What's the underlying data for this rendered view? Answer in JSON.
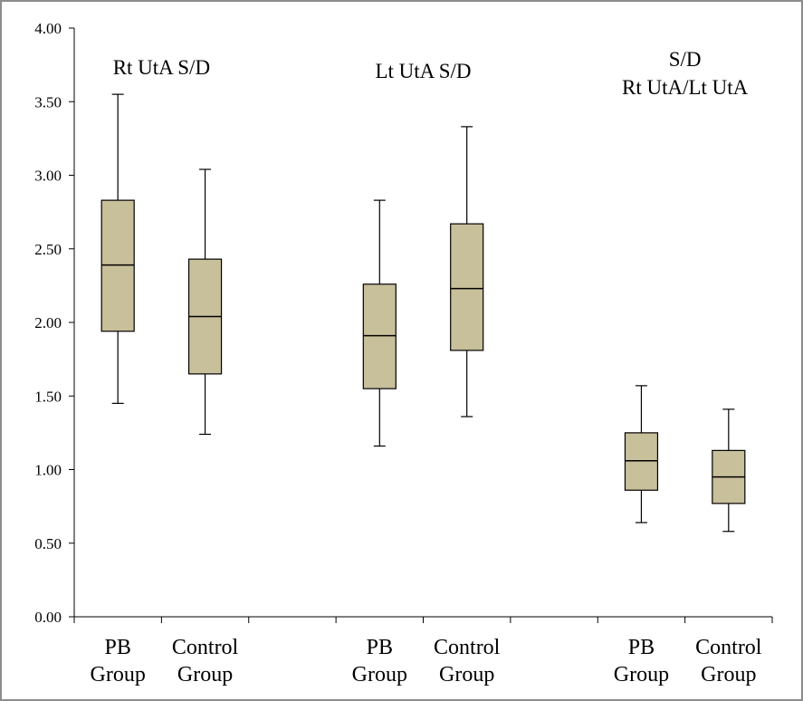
{
  "chart_data": {
    "type": "box",
    "ylim": [
      0,
      4
    ],
    "yticks": [
      "0.00",
      "0.50",
      "1.00",
      "1.50",
      "2.00",
      "2.50",
      "3.00",
      "3.50",
      "4.00"
    ],
    "box_color": "#c8bf9b",
    "groups": [
      {
        "label_lines": [
          "Rt UtA S/D"
        ],
        "boxes": [
          {
            "category": [
              "PB",
              "Group"
            ],
            "min": 1.45,
            "q1": 1.94,
            "median": 2.39,
            "q3": 2.83,
            "max": 3.55
          },
          {
            "category": [
              "Control",
              "Group"
            ],
            "min": 1.24,
            "q1": 1.65,
            "median": 2.04,
            "q3": 2.43,
            "max": 3.04
          }
        ]
      },
      {
        "label_lines": [
          "Lt UtA S/D"
        ],
        "boxes": [
          {
            "category": [
              "PB",
              "Group"
            ],
            "min": 1.16,
            "q1": 1.55,
            "median": 1.91,
            "q3": 2.26,
            "max": 2.83
          },
          {
            "category": [
              "Control",
              "Group"
            ],
            "min": 1.36,
            "q1": 1.81,
            "median": 2.23,
            "q3": 2.67,
            "max": 3.33
          }
        ]
      },
      {
        "label_lines": [
          "S/D",
          "Rt UtA/Lt UtA"
        ],
        "boxes": [
          {
            "category": [
              "PB",
              "Group"
            ],
            "min": 0.64,
            "q1": 0.86,
            "median": 1.06,
            "q3": 1.25,
            "max": 1.57
          },
          {
            "category": [
              "Control",
              "Group"
            ],
            "min": 0.58,
            "q1": 0.77,
            "median": 0.95,
            "q3": 1.13,
            "max": 1.41
          }
        ]
      }
    ]
  }
}
